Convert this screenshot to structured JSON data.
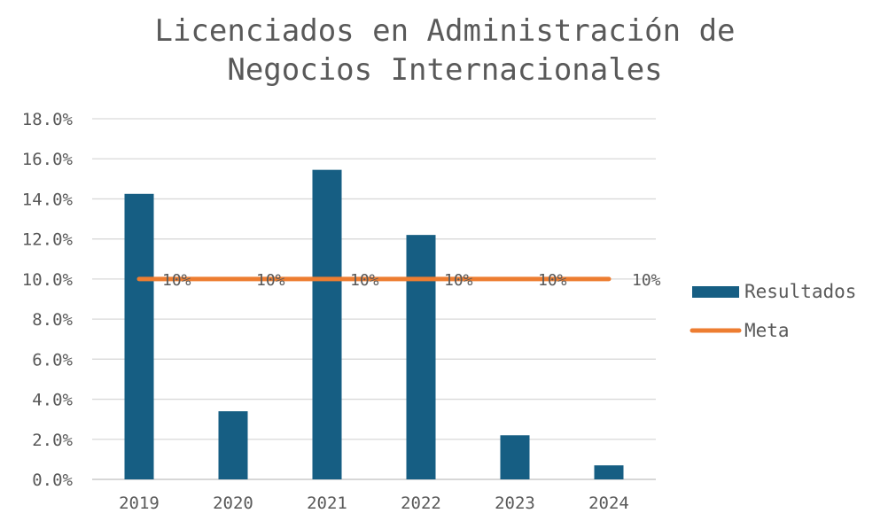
{
  "chart_data": {
    "type": "bar",
    "title_lines": [
      "Licenciados en Administración de",
      "Negocios Internacionales"
    ],
    "categories": [
      "2019",
      "2020",
      "2021",
      "2022",
      "2023",
      "2024"
    ],
    "ylim": [
      0,
      18
    ],
    "yticks": [
      0,
      2,
      4,
      6,
      8,
      10,
      12,
      14,
      16,
      18
    ],
    "ytick_labels": [
      "0.0%",
      "2.0%",
      "4.0%",
      "6.0%",
      "8.0%",
      "10.0%",
      "12.0%",
      "14.0%",
      "16.0%",
      "18.0%"
    ],
    "grid": true,
    "legend_position": "right",
    "series": [
      {
        "name": "Resultados",
        "type": "bar",
        "color": "#165e83",
        "values": [
          14.25,
          3.4,
          15.45,
          12.2,
          2.2,
          0.7
        ]
      },
      {
        "name": "Meta",
        "type": "line",
        "color": "#ed7d31",
        "values": [
          10,
          10,
          10,
          10,
          10,
          10
        ],
        "data_labels": [
          "10%",
          "10%",
          "10%",
          "10%",
          "10%",
          "10%"
        ]
      }
    ]
  }
}
